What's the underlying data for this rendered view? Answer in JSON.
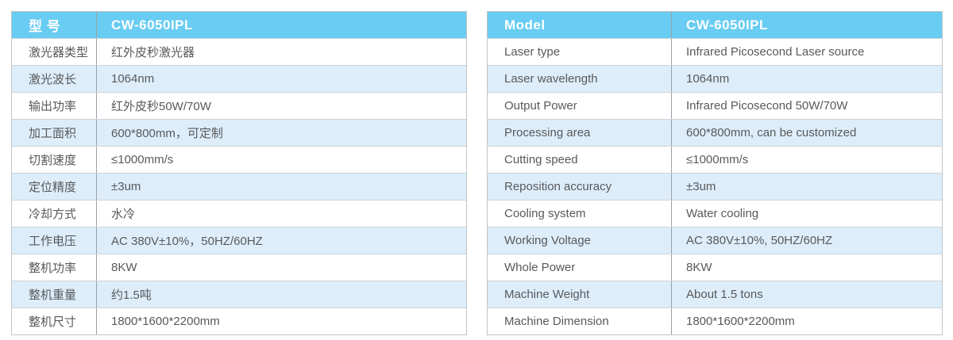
{
  "colors": {
    "header_bg": "#68ccf3",
    "alt_row_bg": "#ddeefa",
    "row_bg": "#ffffff",
    "text": "#58595b",
    "header_text": "#ffffff",
    "column_divider": "#9aa0a6",
    "row_border": "#cdd2d6",
    "outer_border": "#c2c4c6"
  },
  "tables": [
    {
      "name": "chinese-spec-table",
      "header": {
        "label": "型 号",
        "value": "CW-6050IPL"
      },
      "rows": [
        {
          "label": "激光器类型",
          "value": "红外皮秒激光器"
        },
        {
          "label": "激光波长",
          "value": "1064nm"
        },
        {
          "label": "输出功率",
          "value": "红外皮秒50W/70W"
        },
        {
          "label": "加工面积",
          "value": "600*800mm，可定制"
        },
        {
          "label": "切割速度",
          "value": "≤1000mm/s"
        },
        {
          "label": "定位精度",
          "value": "±3um"
        },
        {
          "label": "冷却方式",
          "value": "水冷"
        },
        {
          "label": "工作电压",
          "value": "AC 380V±10%，50HZ/60HZ"
        },
        {
          "label": "整机功率",
          "value": "8KW"
        },
        {
          "label": "整机重量",
          "value": "约1.5吨"
        },
        {
          "label": "整机尺寸",
          "value": "1800*1600*2200mm"
        }
      ]
    },
    {
      "name": "english-spec-table",
      "header": {
        "label": "Model",
        "value": "CW-6050IPL"
      },
      "rows": [
        {
          "label": "Laser type",
          "value": "Infrared Picosecond Laser source"
        },
        {
          "label": "Laser wavelength",
          "value": "1064nm"
        },
        {
          "label": "Output Power",
          "value": "Infrared Picosecond 50W/70W"
        },
        {
          "label": "Processing area",
          "value": "600*800mm, can be customized"
        },
        {
          "label": "Cutting speed",
          "value": "≤1000mm/s"
        },
        {
          "label": "Reposition accuracy",
          "value": "±3um"
        },
        {
          "label": "Cooling system",
          "value": "Water cooling"
        },
        {
          "label": "Working Voltage",
          "value": "AC 380V±10%, 50HZ/60HZ"
        },
        {
          "label": "Whole Power",
          "value": "8KW"
        },
        {
          "label": "Machine Weight",
          "value": "About 1.5 tons"
        },
        {
          "label": "Machine Dimension",
          "value": "1800*1600*2200mm"
        }
      ]
    }
  ]
}
